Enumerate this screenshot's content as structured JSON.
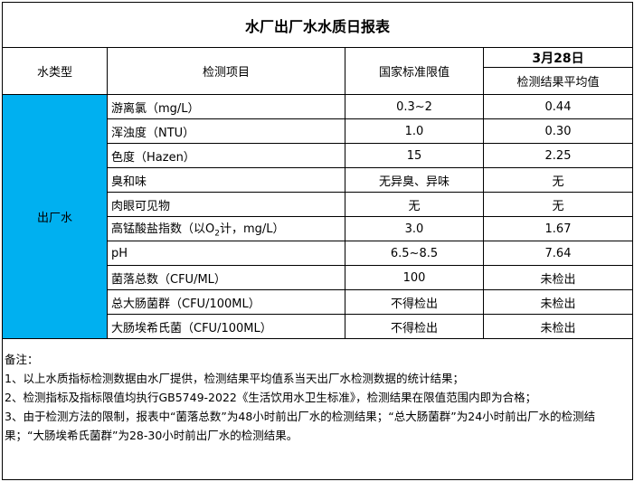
{
  "title": "水厂出厂水水质日报表",
  "headers": {
    "water_type": "水类型",
    "item": "检测项目",
    "standard": "国家标准限值",
    "date": "3月28日",
    "avg": "检测结果平均值"
  },
  "water_type": "出厂水",
  "rows": [
    {
      "item": "游离氯（mg/L）",
      "standard": "0.3~2",
      "value": "0.44"
    },
    {
      "item": "浑浊度（NTU）",
      "standard": "1.0",
      "value": "0.30"
    },
    {
      "item": "色度（Hazen）",
      "standard": "15",
      "value": "2.25"
    },
    {
      "item": "臭和味",
      "standard": "无异臭、异味",
      "value": "无"
    },
    {
      "item": "肉眼可见物",
      "standard": "无",
      "value": "无"
    },
    {
      "item_pre": "高锰酸盐指数（以O",
      "item_sub": "2",
      "item_post": "计，mg/L）",
      "standard": "3.0",
      "value": "1.67"
    },
    {
      "item": "pH",
      "standard": "6.5~8.5",
      "value": "7.64"
    },
    {
      "item": "菌落总数（CFU/ML）",
      "standard": "100",
      "value": "未检出"
    },
    {
      "item": "总大肠菌群（CFU/100ML）",
      "standard": "不得检出",
      "value": "未检出"
    },
    {
      "item": "大肠埃希氏菌（CFU/100ML）",
      "standard": "不得检出",
      "value": "未检出"
    }
  ],
  "notes": {
    "label": "备注：",
    "lines": [
      "1、以上水质指标检测数据由水厂提供，检测结果平均值系当天出厂水检测数据的统计结果；",
      "2、检测指标及指标限值均执行GB5749-2022《生活饮用水卫生标准》，检测结果在限值范围内即为合格；",
      "3、由于检测方法的限制，报表中“菌落总数”为48小时前出厂水的检测结果；“总大肠菌群”为24小时前出厂水的检测结果；“大肠埃希氏菌群”为28-30小时前出厂水的检测结果。"
    ]
  },
  "colors": {
    "water_type_bg": "#00b0f0"
  }
}
